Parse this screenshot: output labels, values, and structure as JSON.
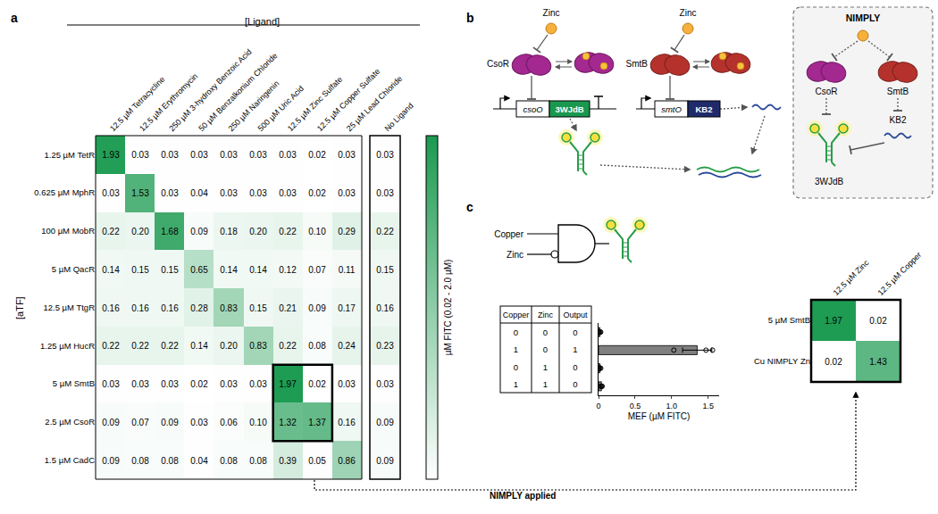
{
  "chart_data": [
    {
      "type": "heatmap",
      "xlabel": "[Ligand]",
      "ylabel": "[aTF]",
      "x_categories": [
        "12.5 µM Tetracycline",
        "12.5 µM Erythromycin",
        "250 µM 3-hydroxy Benzoic Acid",
        "50 µM Benzalkonium Chloride",
        "250 µM Naringenin",
        "500 µM Uric Acid",
        "12.5 µM Zinc Sulfate",
        "12.5 µM Copper Sulfate",
        "25 µM Lead Chloride"
      ],
      "y_categories": [
        "1.25 µM TetR",
        "0.625 µM MphR",
        "100 µM MobR",
        "5 µM QacR",
        "12.5 µM TtgR",
        "1.25 µM HucR",
        "5 µM SmtB",
        "2.5 µM CsoR",
        "1.5 µM CadC"
      ],
      "cells": [
        [
          1.93,
          0.03,
          0.03,
          0.03,
          0.03,
          0.03,
          0.03,
          0.02,
          0.03
        ],
        [
          0.03,
          1.53,
          0.03,
          0.04,
          0.03,
          0.03,
          0.03,
          0.02,
          0.03
        ],
        [
          0.22,
          0.2,
          1.68,
          0.09,
          0.18,
          0.2,
          0.22,
          0.1,
          0.29
        ],
        [
          0.14,
          0.15,
          0.15,
          0.65,
          0.14,
          0.14,
          0.12,
          0.07,
          0.11
        ],
        [
          0.16,
          0.16,
          0.16,
          0.28,
          0.83,
          0.15,
          0.21,
          0.09,
          0.17
        ],
        [
          0.22,
          0.22,
          0.22,
          0.14,
          0.2,
          0.83,
          0.22,
          0.08,
          0.24
        ],
        [
          0.03,
          0.03,
          0.03,
          0.02,
          0.03,
          0.03,
          1.97,
          0.02,
          0.03
        ],
        [
          0.09,
          0.07,
          0.09,
          0.03,
          0.06,
          0.1,
          1.32,
          1.37,
          0.16
        ],
        [
          0.09,
          0.08,
          0.08,
          0.04,
          0.08,
          0.08,
          0.39,
          0.05,
          0.86
        ]
      ],
      "control": {
        "label": "No Ligand",
        "values": [
          0.03,
          0.03,
          0.22,
          0.15,
          0.16,
          0.23,
          0.03,
          0.09,
          0.09
        ]
      },
      "highlight": {
        "rows": [
          "5 µM SmtB",
          "2.5 µM CsoR"
        ],
        "columns": [
          "12.5 µM Zinc Sulfate",
          "12.5 µM Copper Sulfate"
        ]
      },
      "colorbar": {
        "title": "µM FITC (0.02 - 2.0 µM)",
        "range": [
          0.02,
          2.0
        ]
      },
      "color": "#1b9a50",
      "data_labels": true
    },
    {
      "type": "bar",
      "orientation": "horizontal",
      "categories": [
        null,
        null,
        null,
        null
      ],
      "values": [
        0.02,
        1.35,
        0.02,
        0.04
      ],
      "error": [
        0.01,
        0.2,
        0.01,
        0.01
      ],
      "replicates": [
        [
          0.01,
          0.02,
          0.03
        ],
        [
          1.03,
          1.47,
          1.56
        ],
        [
          0.01,
          0.02,
          0.03
        ],
        [
          0.03,
          0.04,
          0.05
        ]
      ],
      "color": "#808080",
      "xlabel": "MEF (µM FITC)",
      "xlim": [
        0,
        1.65
      ],
      "xticks": [
        0,
        0.5,
        {
          "value": 1,
          "label": "1.0"
        },
        1.5
      ],
      "tick_labels": "x",
      "grid": false
    },
    {
      "type": "heatmap",
      "x_categories": [
        "12.5 µM Zinc",
        "12.5 µM Copper"
      ],
      "y_categories": [
        "5 µM SmtB",
        "Cu NIMPLY Zn"
      ],
      "cells": [
        [
          1.97,
          0.02
        ],
        [
          0.02,
          1.43
        ]
      ],
      "color_range": [
        0.02,
        2.0
      ],
      "color": "#1b9a50",
      "data_labels": true
    }
  ],
  "panel_labels": [
    "a",
    "b",
    "c"
  ],
  "diagram_b": {
    "left": {
      "ligand": "Zinc",
      "protein": "CsoR",
      "operator": "csoO",
      "gene": "3WJdB"
    },
    "middle": {
      "ligand": "Zinc",
      "protein": "SmtB",
      "operator": "smtO",
      "gene": "KB2"
    },
    "inset": {
      "title": "NIMPLY",
      "ligand": "Zinc",
      "proteins": [
        "CsoR",
        "SmtB"
      ],
      "rna": "3WJdB",
      "antisense": "KB2"
    }
  },
  "logic_gate": {
    "inputs": [
      "Copper",
      "Zinc"
    ]
  },
  "truth_table": {
    "header": [
      "Copper",
      "Zinc",
      "Output"
    ],
    "rows": [
      [
        0,
        0,
        0
      ],
      [
        1,
        0,
        1
      ],
      [
        0,
        1,
        0
      ],
      [
        1,
        1,
        0
      ]
    ]
  },
  "connector_label": "NIMPLY applied"
}
